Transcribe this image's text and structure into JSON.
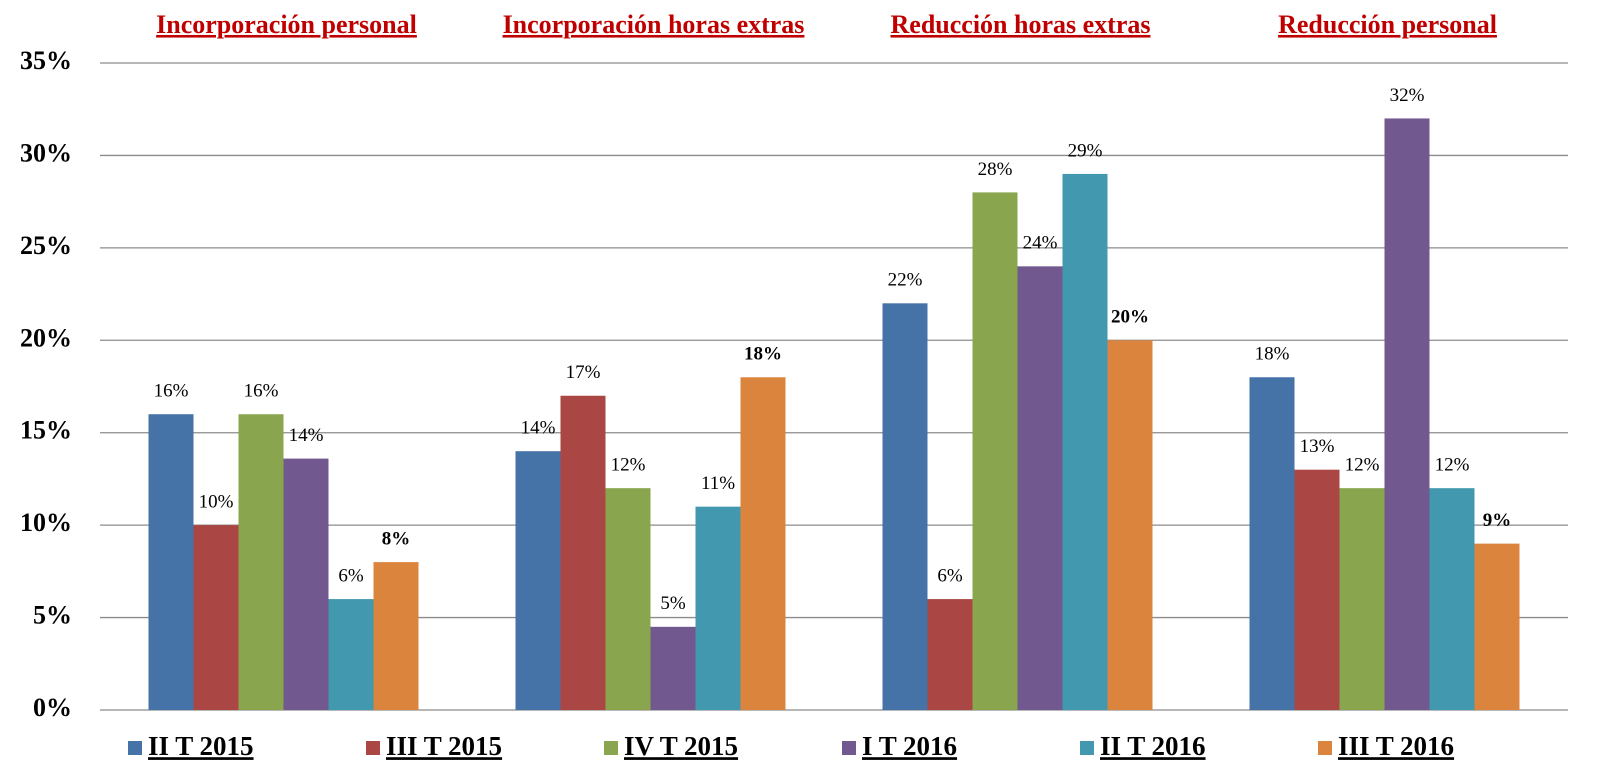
{
  "chart_data": {
    "type": "bar",
    "categories": [
      "Incorporación personal",
      "Incorporación horas extras",
      "Reducción horas extras",
      "Reducción personal"
    ],
    "series": [
      {
        "name": "II T 2015",
        "color": "#4572a7",
        "values": [
          16,
          14,
          22,
          18
        ],
        "value_labels": [
          "16%",
          "14%",
          "22%",
          "18%"
        ]
      },
      {
        "name": "III T 2015",
        "color": "#aa4643",
        "values": [
          10,
          17,
          6,
          13
        ],
        "value_labels": [
          "10%",
          "17%",
          "6%",
          "13%"
        ]
      },
      {
        "name": "IV T 2015",
        "color": "#89a54e",
        "values": [
          16,
          12,
          28,
          12
        ],
        "value_labels": [
          "16%",
          "12%",
          "28%",
          "12%"
        ]
      },
      {
        "name": "I T 2016",
        "color": "#71588f",
        "values": [
          13.6,
          4.5,
          24,
          32
        ],
        "value_labels": [
          "14%",
          "5%",
          "24%",
          "32%"
        ]
      },
      {
        "name": "II T 2016",
        "color": "#4198af",
        "values": [
          6,
          11,
          29,
          12
        ],
        "value_labels": [
          "6%",
          "11%",
          "29%",
          "12%"
        ]
      },
      {
        "name": "III T 2016",
        "color": "#db843d",
        "values": [
          8,
          18,
          20,
          9
        ],
        "value_labels": [
          "8%",
          "18%",
          "20%",
          "9%"
        ]
      }
    ],
    "ylim": [
      0,
      35
    ],
    "yticks": [
      {
        "value": 0,
        "label": "0%"
      },
      {
        "value": 5,
        "label": "5%"
      },
      {
        "value": 10,
        "label": "10%"
      },
      {
        "value": 15,
        "label": "15%"
      },
      {
        "value": 20,
        "label": "20%"
      },
      {
        "value": 25,
        "label": "25%"
      },
      {
        "value": 30,
        "label": "30%"
      },
      {
        "value": 35,
        "label": "35%"
      }
    ],
    "grid": true,
    "legend": "bottom"
  }
}
